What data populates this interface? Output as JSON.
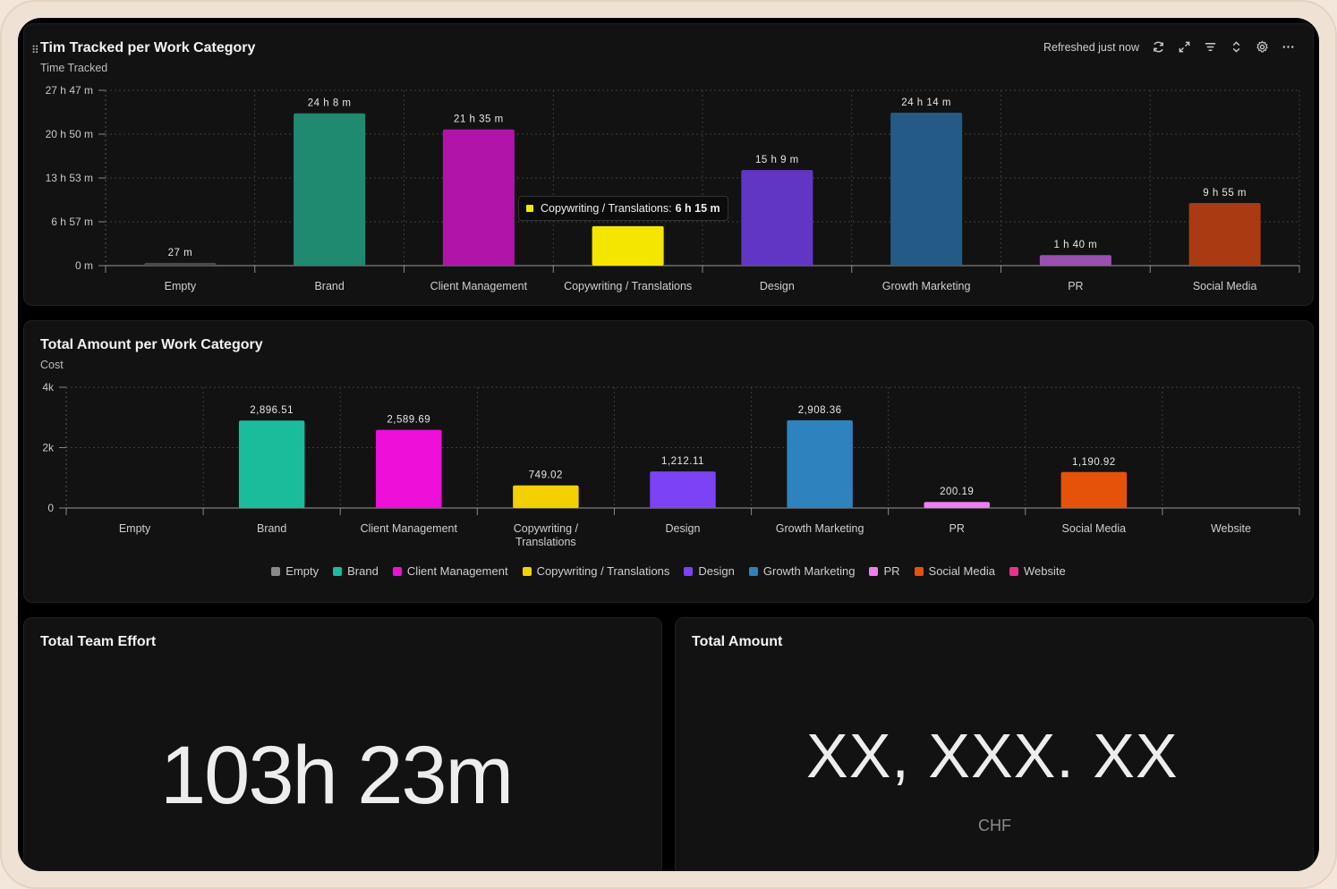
{
  "chart1": {
    "title": "Tim Tracked per Work Category",
    "subtitle": "Time Tracked",
    "refreshed": "Refreshed just now",
    "tooltip": {
      "label": "Copywriting / Translations:",
      "value": "6 h 15 m",
      "color": "#f5e600"
    }
  },
  "chart2": {
    "title": "Total Amount per Work Category",
    "subtitle": "Cost"
  },
  "effort": {
    "title": "Total Team Effort",
    "value": "103h 23m"
  },
  "amount": {
    "title": "Total Amount",
    "value": "XX, XXX. XX",
    "unit": "CHF"
  },
  "chart_data": [
    {
      "type": "bar",
      "ylabel": "Time Tracked",
      "yticks": [
        "0 m",
        "6 h 57 m",
        "13 h 53 m",
        "20 h 50 m",
        "27 h 47 m"
      ],
      "ylim": [
        0,
        1667
      ],
      "categories": [
        "Empty",
        "Brand",
        "Client Management",
        "Copywriting / Translations",
        "Design",
        "Growth Marketing",
        "PR",
        "Social Media"
      ],
      "values": [
        27,
        1448,
        1295,
        375,
        909,
        1454,
        100,
        595
      ],
      "labels": [
        "27 m",
        "24 h 8 m",
        "21 h 35 m",
        "",
        "15 h 9 m",
        "24 h 14 m",
        "1 h 40 m",
        "9 h 55 m"
      ],
      "colors": [
        "#4a4a4a",
        "#1f8a70",
        "#b114a8",
        "#f5e600",
        "#6236c4",
        "#235a86",
        "#9b4fb0",
        "#a93a12"
      ],
      "grid": true
    },
    {
      "type": "bar",
      "ylabel": "Cost",
      "yticks": [
        "0",
        "2k",
        "4k"
      ],
      "ylim": [
        0,
        4000
      ],
      "categories": [
        "Empty",
        "Brand",
        "Client Management",
        "Copywriting / Translations",
        "Design",
        "Growth Marketing",
        "PR",
        "Social Media",
        "Website"
      ],
      "values": [
        0,
        2896.51,
        2589.69,
        749.02,
        1212.11,
        2908.36,
        200.19,
        1190.92,
        0
      ],
      "labels": [
        "",
        "2,896.51",
        "2,589.69",
        "749.02",
        "1,212.11",
        "2,908.36",
        "200.19",
        "1,190.92",
        ""
      ],
      "colors": [
        "#8a8a8a",
        "#1abc9c",
        "#ee10d8",
        "#f5d000",
        "#7b42f6",
        "#2e82be",
        "#f07ef0",
        "#e5530a",
        "#e8338c"
      ],
      "legend": {
        "placement": "bottom",
        "entries": [
          "Empty",
          "Brand",
          "Client Management",
          "Copywriting / Translations",
          "Design",
          "Growth Marketing",
          "PR",
          "Social Media",
          "Website"
        ]
      },
      "grid": true
    }
  ]
}
